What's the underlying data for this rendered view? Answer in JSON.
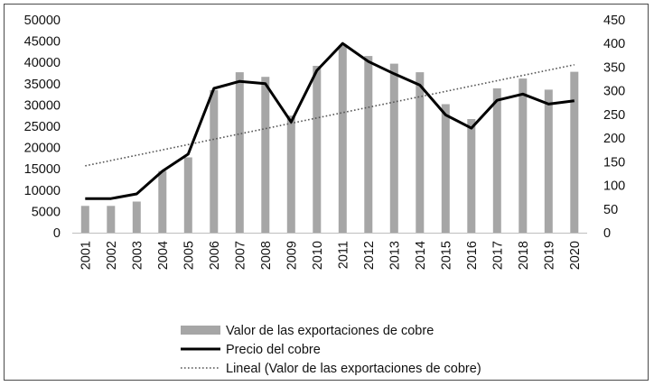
{
  "chart_data": {
    "type": "bar+line",
    "title": "",
    "categories": [
      "2001",
      "2002",
      "2003",
      "2004",
      "2005",
      "2006",
      "2007",
      "2008",
      "2009",
      "2010",
      "2011",
      "2012",
      "2013",
      "2014",
      "2015",
      "2016",
      "2017",
      "2018",
      "2019",
      "2020"
    ],
    "series": [
      {
        "name": "Valor de las exportaciones de cobre",
        "type": "bar",
        "axis": "left",
        "color": "#a6a6a6",
        "values": [
          6300,
          6300,
          7300,
          14500,
          17700,
          33500,
          37700,
          36600,
          27500,
          39200,
          44000,
          41500,
          39700,
          37700,
          30200,
          26700,
          33900,
          36200,
          33600,
          37800
        ]
      },
      {
        "name": "Precio del cobre",
        "type": "line",
        "axis": "right",
        "color": "#000000",
        "values": [
          72,
          72,
          82,
          130,
          166,
          305,
          320,
          315,
          234,
          343,
          400,
          362,
          336,
          312,
          249,
          221,
          280,
          293,
          272,
          279
        ]
      },
      {
        "name": "Lineal (Valor de las exportaciones de cobre)",
        "type": "trendline",
        "axis": "left",
        "color": "#555555",
        "values": [
          15700,
          16950,
          18200,
          19450,
          20700,
          21950,
          23200,
          24450,
          25700,
          26950,
          28200,
          29450,
          30700,
          31950,
          33200,
          34450,
          35700,
          36950,
          38200,
          39450
        ]
      }
    ],
    "y_left": {
      "ylim": [
        0,
        50000
      ],
      "ticks": [
        "0",
        "5000",
        "10000",
        "15000",
        "20000",
        "25000",
        "30000",
        "35000",
        "40000",
        "45000",
        "50000"
      ]
    },
    "y_right": {
      "ylim": [
        0,
        450
      ],
      "ticks": [
        "0",
        "50",
        "100",
        "150",
        "200",
        "250",
        "300",
        "350",
        "400",
        "450"
      ]
    },
    "xlabel": "",
    "ylabel": "",
    "grid": false,
    "legend": {
      "position": "bottom",
      "entries": [
        "Valor de las exportaciones de cobre",
        "Precio del cobre",
        "Lineal (Valor de las exportaciones de cobre)"
      ]
    }
  }
}
